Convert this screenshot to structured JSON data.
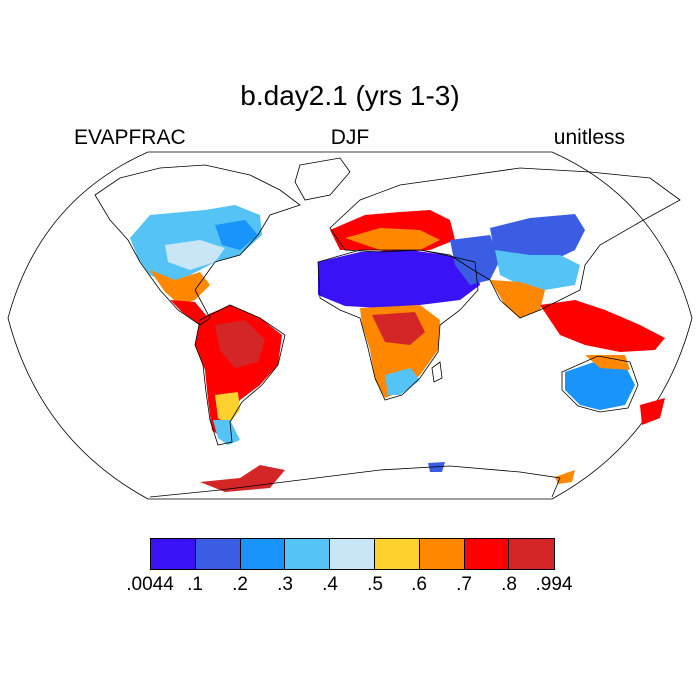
{
  "header": {
    "title": "b.day2.1 (yrs 1-3)",
    "left": "EVAPFRAC",
    "center": "DJF",
    "right": "unitless"
  },
  "legend": {
    "colors": [
      "#3a12f5",
      "#3b5de3",
      "#1994fa",
      "#55c3f5",
      "#c8e6f5",
      "#ffd12e",
      "#ff8800",
      "#ff0000",
      "#d42626"
    ],
    "labels": [
      ".0044",
      ".1",
      ".2",
      ".3",
      ".4",
      ".5",
      ".6",
      ".7",
      ".8",
      ".994"
    ]
  }
}
